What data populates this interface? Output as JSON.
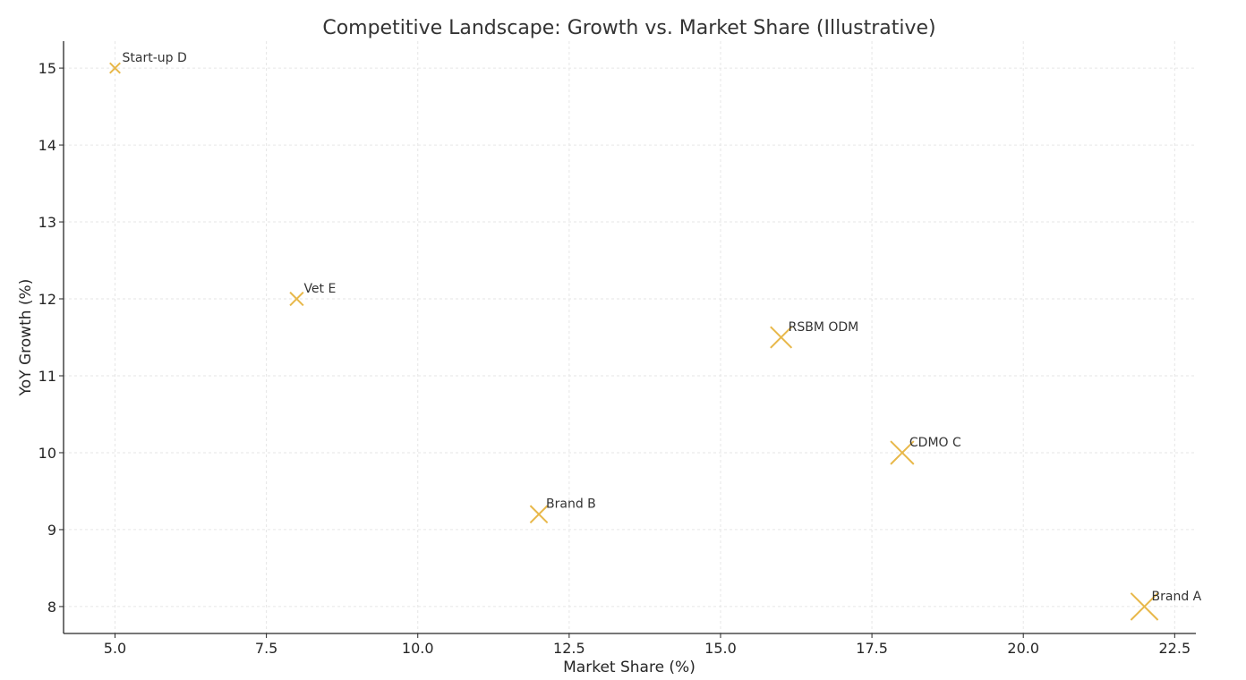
{
  "chart_data": {
    "type": "scatter",
    "title": "Competitive Landscape: Growth vs. Market Share (Illustrative)",
    "xlabel": "Market Share (%)",
    "ylabel": "YoY Growth (%)",
    "xlim": [
      4.15,
      22.85
    ],
    "ylim": [
      7.65,
      15.35
    ],
    "xticks": [
      5.0,
      7.5,
      10.0,
      12.5,
      15.0,
      17.5,
      20.0,
      22.5
    ],
    "xtick_labels": [
      "5.0",
      "7.5",
      "10.0",
      "12.5",
      "15.0",
      "17.5",
      "20.0",
      "22.5"
    ],
    "yticks": [
      8,
      9,
      10,
      11,
      12,
      13,
      14,
      15
    ],
    "ytick_labels": [
      "8",
      "9",
      "10",
      "11",
      "12",
      "13",
      "14",
      "15"
    ],
    "grid": true,
    "marker": "x",
    "marker_color": "#E8B84A",
    "points": [
      {
        "label": "Brand A",
        "x": 22,
        "y": 8.0,
        "size": 22
      },
      {
        "label": "Brand B",
        "x": 12,
        "y": 9.2,
        "size": 12
      },
      {
        "label": "CDMO C",
        "x": 18,
        "y": 10.0,
        "size": 18
      },
      {
        "label": "Start-up D",
        "x": 5,
        "y": 15.0,
        "size": 5
      },
      {
        "label": "Vet E",
        "x": 8,
        "y": 12.0,
        "size": 8
      },
      {
        "label": "RSBM ODM",
        "x": 16,
        "y": 11.5,
        "size": 16
      }
    ]
  }
}
